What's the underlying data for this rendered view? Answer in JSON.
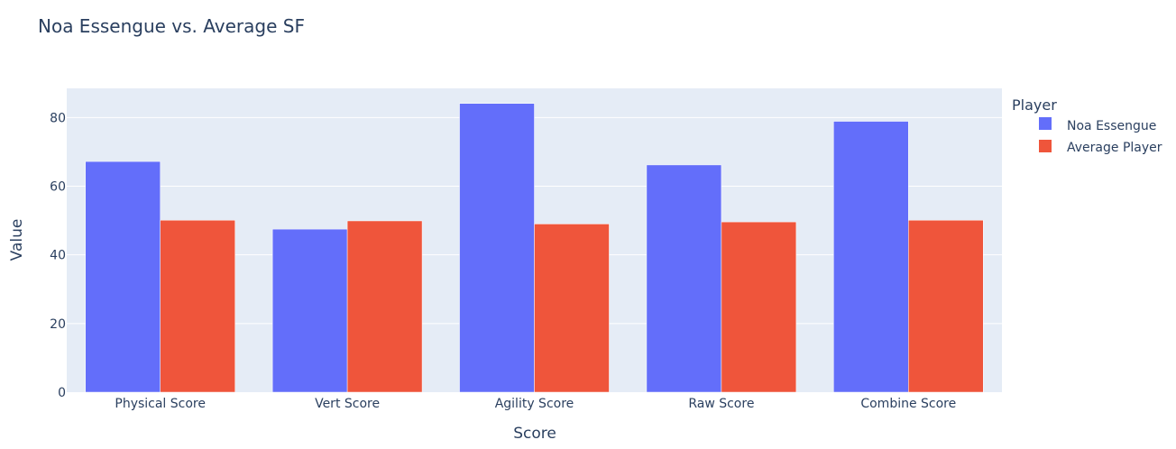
{
  "chart_data": {
    "type": "bar",
    "title": "Noa Essengue vs. Average SF",
    "xlabel": "Score",
    "ylabel": "Value",
    "categories": [
      "Physical Score",
      "Vert Score",
      "Agility Score",
      "Raw Score",
      "Combine Score"
    ],
    "series": [
      {
        "name": "Noa Essengue",
        "color": "#636efa",
        "values": [
          67.2,
          47.5,
          84.1,
          66.2,
          78.9
        ]
      },
      {
        "name": "Average Player",
        "color": "#ef553b",
        "values": [
          50.1,
          49.9,
          49.0,
          49.6,
          50.1
        ]
      }
    ],
    "ylim": [
      0,
      88.5
    ],
    "yticks": [
      0,
      20,
      40,
      60,
      80
    ],
    "grid": true,
    "legend": {
      "title": "Player",
      "placement": "right"
    },
    "plot_background": "#e5ecf6"
  }
}
